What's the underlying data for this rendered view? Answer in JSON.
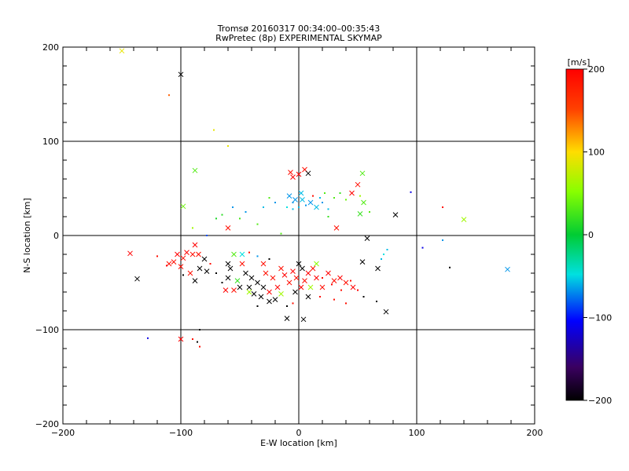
{
  "chart_data": {
    "type": "scatter",
    "title": "Tromsø 20160317 00:34:00–00:35:43",
    "subtitle": "RwPretec (8p) EXPERIMENTAL SKYMAP",
    "xlabel": "E-W location [km]",
    "ylabel": "N-S location [km]",
    "xlim": [
      -200,
      200
    ],
    "ylim": [
      -200,
      200
    ],
    "x_ticks": [
      -200,
      -100,
      0,
      100,
      200
    ],
    "y_ticks": [
      -200,
      -100,
      0,
      100,
      200
    ],
    "x_tick_labels": [
      "−200",
      "−100",
      "0",
      "100",
      "200"
    ],
    "y_tick_labels": [
      "−200",
      "−100",
      "0",
      "100",
      "200"
    ],
    "grid_lines_x": [
      -100,
      0,
      100
    ],
    "grid_lines_y": [
      -100,
      0,
      100
    ],
    "colorbar": {
      "label": "[m/s]",
      "range": [
        -200,
        200
      ],
      "ticks": [
        200,
        100,
        0,
        -100,
        -200
      ],
      "tick_labels": [
        "200",
        "100",
        "0",
        "−100",
        "−200"
      ],
      "colormap": "black-purple-blue-cyan-green-yellow-orange-red"
    },
    "symbols": {
      "cross": "large x marker",
      "dot": "small point marker"
    },
    "points": [
      {
        "x": -150,
        "y": 196,
        "v": 90,
        "m": "x"
      },
      {
        "x": -100,
        "y": 171,
        "v": -200,
        "m": "x"
      },
      {
        "x": -110,
        "y": 149,
        "v": 140,
        "m": "dot"
      },
      {
        "x": -72,
        "y": 112,
        "v": 90,
        "m": "dot"
      },
      {
        "x": -60,
        "y": 95,
        "v": 90,
        "m": "dot"
      },
      {
        "x": -88,
        "y": 69,
        "v": 30,
        "m": "x"
      },
      {
        "x": -98,
        "y": 31,
        "v": 40,
        "m": "x"
      },
      {
        "x": -90,
        "y": 8,
        "v": 60,
        "m": "dot"
      },
      {
        "x": -78,
        "y": 0,
        "v": -80,
        "m": "dot"
      },
      {
        "x": -70,
        "y": 18,
        "v": 10,
        "m": "dot"
      },
      {
        "x": -60,
        "y": 8,
        "v": 190,
        "m": "x"
      },
      {
        "x": -65,
        "y": 22,
        "v": 15,
        "m": "dot"
      },
      {
        "x": -50,
        "y": 18,
        "v": 25,
        "m": "dot"
      },
      {
        "x": -56,
        "y": 30,
        "v": -60,
        "m": "dot"
      },
      {
        "x": -45,
        "y": 25,
        "v": -60,
        "m": "dot"
      },
      {
        "x": -35,
        "y": 12,
        "v": 30,
        "m": "dot"
      },
      {
        "x": -30,
        "y": 30,
        "v": -50,
        "m": "dot"
      },
      {
        "x": -15,
        "y": 2,
        "v": 30,
        "m": "dot"
      },
      {
        "x": -10,
        "y": 30,
        "v": -40,
        "m": "dot"
      },
      {
        "x": -5,
        "y": 35,
        "v": -60,
        "m": "dot"
      },
      {
        "x": -8,
        "y": 42,
        "v": -60,
        "m": "x"
      },
      {
        "x": -5,
        "y": 62,
        "v": 200,
        "m": "x"
      },
      {
        "x": -7,
        "y": 67,
        "v": 190,
        "m": "x"
      },
      {
        "x": 0,
        "y": 65,
        "v": 200,
        "m": "x"
      },
      {
        "x": 5,
        "y": 70,
        "v": 190,
        "m": "x"
      },
      {
        "x": 8,
        "y": 66,
        "v": -200,
        "m": "x"
      },
      {
        "x": 2,
        "y": 45,
        "v": -50,
        "m": "x"
      },
      {
        "x": -3,
        "y": 38,
        "v": -60,
        "m": "x"
      },
      {
        "x": 3,
        "y": 38,
        "v": -50,
        "m": "x"
      },
      {
        "x": 10,
        "y": 35,
        "v": -60,
        "m": "x"
      },
      {
        "x": 15,
        "y": 30,
        "v": -50,
        "m": "x"
      },
      {
        "x": 12,
        "y": 42,
        "v": 190,
        "m": "dot"
      },
      {
        "x": 20,
        "y": 35,
        "v": -60,
        "m": "dot"
      },
      {
        "x": 25,
        "y": 28,
        "v": -50,
        "m": "dot"
      },
      {
        "x": 30,
        "y": 40,
        "v": 30,
        "m": "dot"
      },
      {
        "x": 35,
        "y": 45,
        "v": 20,
        "m": "dot"
      },
      {
        "x": 40,
        "y": 38,
        "v": 40,
        "m": "dot"
      },
      {
        "x": 45,
        "y": 45,
        "v": 200,
        "m": "x"
      },
      {
        "x": 50,
        "y": 54,
        "v": 190,
        "m": "x"
      },
      {
        "x": 52,
        "y": 42,
        "v": 60,
        "m": "dot"
      },
      {
        "x": 55,
        "y": 35,
        "v": 30,
        "m": "x"
      },
      {
        "x": 52,
        "y": 23,
        "v": 20,
        "m": "x"
      },
      {
        "x": 60,
        "y": 25,
        "v": 30,
        "m": "dot"
      },
      {
        "x": 54,
        "y": 66,
        "v": 30,
        "m": "x"
      },
      {
        "x": 32,
        "y": 8,
        "v": 190,
        "m": "x"
      },
      {
        "x": 25,
        "y": 20,
        "v": 20,
        "m": "dot"
      },
      {
        "x": 82,
        "y": 22,
        "v": -200,
        "m": "x"
      },
      {
        "x": 95,
        "y": 46,
        "v": -110,
        "m": "dot"
      },
      {
        "x": 122,
        "y": 30,
        "v": 190,
        "m": "dot"
      },
      {
        "x": 140,
        "y": 17,
        "v": 60,
        "m": "x"
      },
      {
        "x": 58,
        "y": -3,
        "v": -200,
        "m": "x"
      },
      {
        "x": 70,
        "y": -25,
        "v": -50,
        "m": "dot"
      },
      {
        "x": 72,
        "y": -20,
        "v": -40,
        "m": "dot"
      },
      {
        "x": 75,
        "y": -15,
        "v": -50,
        "m": "dot"
      },
      {
        "x": 67,
        "y": -35,
        "v": -200,
        "m": "x"
      },
      {
        "x": 54,
        "y": -28,
        "v": -200,
        "m": "x"
      },
      {
        "x": 105,
        "y": -13,
        "v": -110,
        "m": "dot"
      },
      {
        "x": 122,
        "y": -5,
        "v": -60,
        "m": "dot"
      },
      {
        "x": 128,
        "y": -34,
        "v": -200,
        "m": "dot"
      },
      {
        "x": 177,
        "y": -36,
        "v": -60,
        "m": "x"
      },
      {
        "x": 74,
        "y": -81,
        "v": -200,
        "m": "x"
      },
      {
        "x": 66,
        "y": -70,
        "v": -200,
        "m": "dot"
      },
      {
        "x": 55,
        "y": -65,
        "v": -200,
        "m": "dot"
      },
      {
        "x": 46,
        "y": -55,
        "v": 200,
        "m": "x"
      },
      {
        "x": 40,
        "y": -50,
        "v": 190,
        "m": "x"
      },
      {
        "x": 35,
        "y": -45,
        "v": 200,
        "m": "x"
      },
      {
        "x": 30,
        "y": -48,
        "v": 190,
        "m": "x"
      },
      {
        "x": 25,
        "y": -40,
        "v": 200,
        "m": "x"
      },
      {
        "x": 20,
        "y": -55,
        "v": 190,
        "m": "x"
      },
      {
        "x": 15,
        "y": -45,
        "v": 200,
        "m": "x"
      },
      {
        "x": 12,
        "y": -35,
        "v": 190,
        "m": "x"
      },
      {
        "x": 8,
        "y": -40,
        "v": 200,
        "m": "x"
      },
      {
        "x": 5,
        "y": -48,
        "v": 190,
        "m": "x"
      },
      {
        "x": 2,
        "y": -55,
        "v": 200,
        "m": "x"
      },
      {
        "x": -2,
        "y": -45,
        "v": 190,
        "m": "x"
      },
      {
        "x": -5,
        "y": -38,
        "v": 200,
        "m": "x"
      },
      {
        "x": -8,
        "y": -50,
        "v": 190,
        "m": "x"
      },
      {
        "x": -12,
        "y": -42,
        "v": 200,
        "m": "x"
      },
      {
        "x": -15,
        "y": -35,
        "v": 190,
        "m": "x"
      },
      {
        "x": -18,
        "y": -55,
        "v": 200,
        "m": "x"
      },
      {
        "x": -22,
        "y": -45,
        "v": 190,
        "m": "x"
      },
      {
        "x": -25,
        "y": -60,
        "v": 200,
        "m": "x"
      },
      {
        "x": -28,
        "y": -40,
        "v": 190,
        "m": "x"
      },
      {
        "x": 0,
        "y": -30,
        "v": -200,
        "m": "x"
      },
      {
        "x": 3,
        "y": -35,
        "v": -200,
        "m": "x"
      },
      {
        "x": -3,
        "y": -60,
        "v": -200,
        "m": "x"
      },
      {
        "x": 8,
        "y": -65,
        "v": -200,
        "m": "x"
      },
      {
        "x": 10,
        "y": -55,
        "v": 60,
        "m": "x"
      },
      {
        "x": 15,
        "y": -30,
        "v": 50,
        "m": "x"
      },
      {
        "x": -20,
        "y": -68,
        "v": -200,
        "m": "x"
      },
      {
        "x": -25,
        "y": -70,
        "v": -200,
        "m": "x"
      },
      {
        "x": -30,
        "y": -55,
        "v": -200,
        "m": "x"
      },
      {
        "x": -32,
        "y": -65,
        "v": -200,
        "m": "x"
      },
      {
        "x": -35,
        "y": -50,
        "v": -200,
        "m": "x"
      },
      {
        "x": -38,
        "y": -62,
        "v": -200,
        "m": "x"
      },
      {
        "x": -40,
        "y": -45,
        "v": -200,
        "m": "x"
      },
      {
        "x": -42,
        "y": -55,
        "v": -200,
        "m": "x"
      },
      {
        "x": -45,
        "y": -40,
        "v": -200,
        "m": "x"
      },
      {
        "x": -48,
        "y": -30,
        "v": 190,
        "m": "x"
      },
      {
        "x": -50,
        "y": -55,
        "v": -200,
        "m": "x"
      },
      {
        "x": -52,
        "y": -48,
        "v": 20,
        "m": "x"
      },
      {
        "x": -55,
        "y": -58,
        "v": 190,
        "m": "x"
      },
      {
        "x": -58,
        "y": -35,
        "v": -200,
        "m": "x"
      },
      {
        "x": -60,
        "y": -45,
        "v": -200,
        "m": "x"
      },
      {
        "x": -62,
        "y": -58,
        "v": 200,
        "m": "x"
      },
      {
        "x": -60,
        "y": -30,
        "v": -200,
        "m": "x"
      },
      {
        "x": -55,
        "y": -20,
        "v": 30,
        "m": "x"
      },
      {
        "x": -48,
        "y": -20,
        "v": -40,
        "m": "x"
      },
      {
        "x": -42,
        "y": -18,
        "v": 190,
        "m": "dot"
      },
      {
        "x": -35,
        "y": -22,
        "v": -60,
        "m": "dot"
      },
      {
        "x": -30,
        "y": -30,
        "v": 190,
        "m": "x"
      },
      {
        "x": -25,
        "y": -25,
        "v": -200,
        "m": "dot"
      },
      {
        "x": -35,
        "y": -75,
        "v": -200,
        "m": "dot"
      },
      {
        "x": -10,
        "y": -75,
        "v": -200,
        "m": "dot"
      },
      {
        "x": -10,
        "y": -88,
        "v": -200,
        "m": "x"
      },
      {
        "x": 4,
        "y": -89,
        "v": -200,
        "m": "x"
      },
      {
        "x": -5,
        "y": -72,
        "v": 190,
        "m": "dot"
      },
      {
        "x": 18,
        "y": -65,
        "v": 190,
        "m": "dot"
      },
      {
        "x": -65,
        "y": -50,
        "v": -200,
        "m": "dot"
      },
      {
        "x": -70,
        "y": -40,
        "v": -200,
        "m": "dot"
      },
      {
        "x": -75,
        "y": -30,
        "v": 190,
        "m": "dot"
      },
      {
        "x": -78,
        "y": -38,
        "v": -200,
        "m": "x"
      },
      {
        "x": -80,
        "y": -25,
        "v": -200,
        "m": "x"
      },
      {
        "x": -85,
        "y": -20,
        "v": 190,
        "m": "x"
      },
      {
        "x": -88,
        "y": -10,
        "v": 200,
        "m": "x"
      },
      {
        "x": -90,
        "y": -20,
        "v": 190,
        "m": "x"
      },
      {
        "x": -92,
        "y": -40,
        "v": 190,
        "m": "x"
      },
      {
        "x": -95,
        "y": -18,
        "v": 200,
        "m": "x"
      },
      {
        "x": -98,
        "y": -24,
        "v": 190,
        "m": "x"
      },
      {
        "x": -100,
        "y": -33,
        "v": 190,
        "m": "x"
      },
      {
        "x": -103,
        "y": -20,
        "v": 200,
        "m": "x"
      },
      {
        "x": -106,
        "y": -28,
        "v": 190,
        "m": "x"
      },
      {
        "x": -110,
        "y": -30,
        "v": 190,
        "m": "x"
      },
      {
        "x": -112,
        "y": -32,
        "v": 200,
        "m": "dot"
      },
      {
        "x": -84,
        "y": -35,
        "v": -200,
        "m": "x"
      },
      {
        "x": -88,
        "y": -48,
        "v": -200,
        "m": "x"
      },
      {
        "x": -98,
        "y": -42,
        "v": -200,
        "m": "dot"
      },
      {
        "x": -120,
        "y": -22,
        "v": 190,
        "m": "dot"
      },
      {
        "x": -143,
        "y": -19,
        "v": 200,
        "m": "x"
      },
      {
        "x": -137,
        "y": -46,
        "v": -200,
        "m": "x"
      },
      {
        "x": -128,
        "y": -109,
        "v": -110,
        "m": "dot"
      },
      {
        "x": -100,
        "y": -110,
        "v": 200,
        "m": "x"
      },
      {
        "x": -90,
        "y": -110,
        "v": 190,
        "m": "dot"
      },
      {
        "x": -86,
        "y": -113,
        "v": -200,
        "m": "dot"
      },
      {
        "x": -84,
        "y": -100,
        "v": -200,
        "m": "dot"
      },
      {
        "x": -84,
        "y": -118,
        "v": 190,
        "m": "dot"
      },
      {
        "x": 20,
        "y": -45,
        "v": 190,
        "m": "dot"
      },
      {
        "x": 28,
        "y": -52,
        "v": 200,
        "m": "dot"
      },
      {
        "x": 36,
        "y": -58,
        "v": 190,
        "m": "dot"
      },
      {
        "x": 44,
        "y": -48,
        "v": 190,
        "m": "dot"
      },
      {
        "x": 50,
        "y": -58,
        "v": 200,
        "m": "dot"
      },
      {
        "x": 40,
        "y": -72,
        "v": 190,
        "m": "dot"
      },
      {
        "x": 30,
        "y": -68,
        "v": 190,
        "m": "dot"
      },
      {
        "x": -15,
        "y": -62,
        "v": 60,
        "m": "x"
      },
      {
        "x": -42,
        "y": -60,
        "v": 60,
        "m": "x"
      },
      {
        "x": -5,
        "y": 28,
        "v": -50,
        "m": "dot"
      },
      {
        "x": 0,
        "y": 30,
        "v": -50,
        "m": "dot"
      },
      {
        "x": 6,
        "y": 32,
        "v": -60,
        "m": "dot"
      },
      {
        "x": 18,
        "y": 40,
        "v": -50,
        "m": "dot"
      },
      {
        "x": 22,
        "y": 45,
        "v": 30,
        "m": "dot"
      },
      {
        "x": -20,
        "y": 35,
        "v": -60,
        "m": "dot"
      },
      {
        "x": -25,
        "y": 40,
        "v": 30,
        "m": "dot"
      }
    ]
  }
}
